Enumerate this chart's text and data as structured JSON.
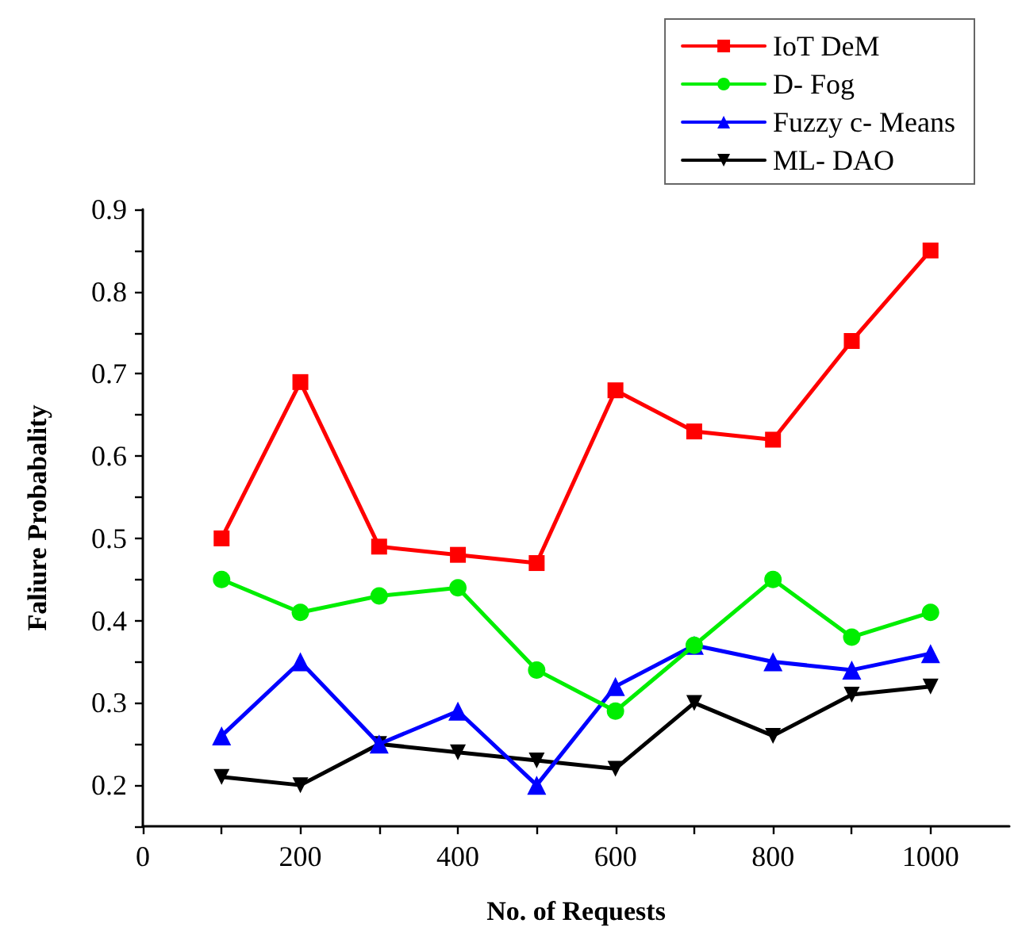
{
  "chart_data": {
    "type": "line",
    "xlabel": "No. of Requests",
    "ylabel": "Faliure Probabality",
    "x": [
      100,
      200,
      300,
      400,
      500,
      600,
      700,
      800,
      900,
      1000
    ],
    "series": [
      {
        "name": "IoT DeM",
        "color": "#ff0000",
        "marker": "square",
        "values": [
          0.5,
          0.69,
          0.49,
          0.48,
          0.47,
          0.68,
          0.63,
          0.62,
          0.74,
          0.85
        ]
      },
      {
        "name": "D- Fog",
        "color": "#00ee00",
        "marker": "circle",
        "values": [
          0.45,
          0.41,
          0.43,
          0.44,
          0.34,
          0.29,
          0.37,
          0.45,
          0.38,
          0.41
        ]
      },
      {
        "name": "Fuzzy c- Means",
        "color": "#0000ff",
        "marker": "triangle",
        "values": [
          0.26,
          0.35,
          0.25,
          0.29,
          0.2,
          0.32,
          0.37,
          0.35,
          0.34,
          0.36
        ]
      },
      {
        "name": "ML- DAO",
        "color": "#000000",
        "marker": "triangle_down",
        "values": [
          0.21,
          0.2,
          0.25,
          0.24,
          0.23,
          0.22,
          0.3,
          0.26,
          0.31,
          0.32
        ]
      }
    ],
    "xlim": [
      0,
      1100
    ],
    "xticks": [
      0,
      {
        "value": 100,
        "label": null
      },
      200,
      {
        "value": 300,
        "label": null
      },
      400,
      {
        "value": 500,
        "label": null
      },
      600,
      {
        "value": 700,
        "label": null
      },
      800,
      {
        "value": 900,
        "label": null
      },
      1000
    ],
    "ylim": [
      0.15,
      0.9
    ],
    "yticks": [
      {
        "value": 0.15,
        "label": null
      },
      0.2,
      {
        "value": 0.25,
        "label": null
      },
      0.3,
      {
        "value": 0.35,
        "label": null
      },
      0.4,
      {
        "value": 0.45,
        "label": null
      },
      0.5,
      {
        "value": 0.55,
        "label": null
      },
      0.6,
      {
        "value": 0.65,
        "label": null
      },
      0.7,
      {
        "value": 0.75,
        "label": null
      },
      0.8,
      {
        "value": 0.85,
        "label": null
      },
      0.9
    ],
    "legend": "top right",
    "grid": false,
    "line_style": "solid"
  }
}
